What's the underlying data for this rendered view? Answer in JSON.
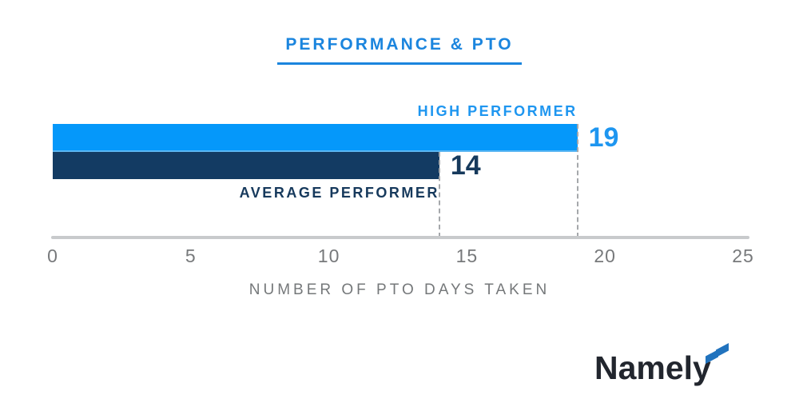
{
  "chart_data": {
    "type": "bar",
    "orientation": "horizontal",
    "title": "PERFORMANCE & PTO",
    "categories": [
      "HIGH PERFORMER",
      "AVERAGE PERFORMER"
    ],
    "values": [
      19,
      14
    ],
    "value_labels": [
      "19",
      "14"
    ],
    "xlabel": "NUMBER OF PTO DAYS TAKEN",
    "ylabel": "",
    "xlim": [
      0,
      25
    ],
    "xticks": [
      0,
      5,
      10,
      15,
      20,
      25
    ],
    "grid": false,
    "legend": "none",
    "guide_lines": "dashed vertical line at each bar end down to x-axis",
    "colors": {
      "bar_high_performer": "#0598FA",
      "bar_average_performer": "#133B63",
      "label_high_performer": "#1E96F0",
      "label_average_performer": "#16395C",
      "title_blue": "#1B85DE",
      "axis_gray": "#C8CACC",
      "tick_gray": "#77797B",
      "dash_gray": "#A5A8AB"
    }
  },
  "branding": {
    "logo_text": "Namely",
    "logo_text_color": "#22262E",
    "flag_icon": "namely-flag-icon",
    "flag_color": "#2173BE"
  }
}
